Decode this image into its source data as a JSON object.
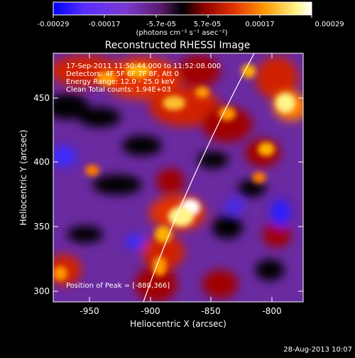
{
  "colorbar": {
    "tick_labels": [
      "-0.00029",
      "-0.00017",
      "-5.7e-05",
      "5.7e-05",
      "0.00017",
      "0.00029"
    ],
    "units_label": "(photons cm⁻² s⁻¹ asec⁻²)",
    "stops": [
      "#0000ff",
      "#5a2dff",
      "#7a3ad0",
      "#5a1a6a",
      "#000000",
      "#8a0000",
      "#e23300",
      "#ff9a00",
      "#fff48a",
      "#ffffff"
    ]
  },
  "image": {
    "title": "Reconstructed RHESSI Image",
    "info_lines": [
      "17-Sep-2011 11:50:44.000 to 11:52:08.000",
      "Detectors: 4F 5F 6F 7F 8F, Att 0",
      "Energy Range: 12.0 - 25.0 keV",
      "Clean     Total counts: 1.94E+03"
    ],
    "peak_label": "Position of Peak = [-880,366]",
    "xlabel": "Heliocentric X (arcsec)",
    "ylabel": "Heliocentric Y (arcsec)",
    "xticks": [
      "-950",
      "-900",
      "-850",
      "-800"
    ],
    "yticks": [
      "300",
      "350",
      "400",
      "450"
    ],
    "xrange": [
      -978,
      -787
    ],
    "yrange": [
      291,
      485
    ]
  },
  "footer": {
    "timestamp": "28-Aug-2013 10:07"
  }
}
